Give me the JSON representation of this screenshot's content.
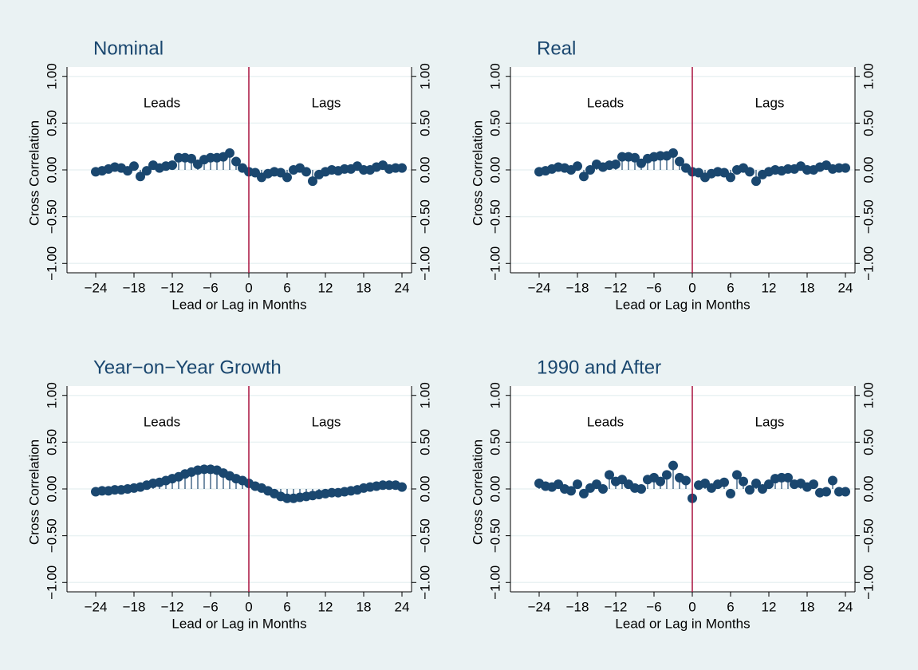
{
  "chart_data": [
    {
      "type": "stem",
      "title": "Nominal",
      "xlabel": "Lead or Lag in Months",
      "ylabel": "Cross Correlation",
      "annotations": [
        "Leads",
        "Lags"
      ],
      "x": [
        -24,
        -23,
        -22,
        -21,
        -20,
        -19,
        -18,
        -17,
        -16,
        -15,
        -14,
        -13,
        -12,
        -11,
        -10,
        -9,
        -8,
        -7,
        -6,
        -5,
        -4,
        -3,
        -2,
        -1,
        0,
        1,
        2,
        3,
        4,
        5,
        6,
        7,
        8,
        9,
        10,
        11,
        12,
        13,
        14,
        15,
        16,
        17,
        18,
        19,
        20,
        21,
        22,
        23,
        24
      ],
      "values": [
        -0.02,
        -0.01,
        0.01,
        0.03,
        0.02,
        -0.01,
        0.04,
        -0.07,
        -0.01,
        0.05,
        0.02,
        0.04,
        0.05,
        0.13,
        0.13,
        0.12,
        0.06,
        0.11,
        0.13,
        0.13,
        0.14,
        0.18,
        0.09,
        0.02,
        -0.02,
        -0.03,
        -0.08,
        -0.04,
        -0.02,
        -0.03,
        -0.08,
        0.0,
        0.02,
        -0.02,
        -0.12,
        -0.05,
        -0.02,
        0.0,
        -0.01,
        0.01,
        0.01,
        0.04,
        0.0,
        0.0,
        0.03,
        0.05,
        0.01,
        0.02,
        0.02
      ],
      "color": "#1a476f",
      "xline": 0,
      "xline_color": "#a8103e",
      "grid": true,
      "xlim": [
        -28.5,
        25.5
      ],
      "ylim": [
        -1.1,
        1.1
      ],
      "xticks": [
        {
          "value": -24,
          "label": "−24"
        },
        {
          "value": -18,
          "label": "−18"
        },
        {
          "value": -12,
          "label": "−12"
        },
        {
          "value": -6,
          "label": "−6"
        },
        0,
        6,
        12,
        18,
        24
      ],
      "yticks": [
        {
          "value": -1,
          "label": "−1.00"
        },
        {
          "value": -0.5,
          "label": "−0.50"
        },
        {
          "value": 0,
          "label": "0.00"
        },
        {
          "value": 0.5,
          "label": "0.50"
        },
        {
          "value": 1,
          "label": "1.00"
        }
      ]
    },
    {
      "type": "stem",
      "title": "Real",
      "xlabel": "Lead or Lag in Months",
      "ylabel": "Cross Correlation",
      "annotations": [
        "Leads",
        "Lags"
      ],
      "x": [
        -24,
        -23,
        -22,
        -21,
        -20,
        -19,
        -18,
        -17,
        -16,
        -15,
        -14,
        -13,
        -12,
        -11,
        -10,
        -9,
        -8,
        -7,
        -6,
        -5,
        -4,
        -3,
        -2,
        -1,
        0,
        1,
        2,
        3,
        4,
        5,
        6,
        7,
        8,
        9,
        10,
        11,
        12,
        13,
        14,
        15,
        16,
        17,
        18,
        19,
        20,
        21,
        22,
        23,
        24
      ],
      "values": [
        -0.02,
        -0.01,
        0.01,
        0.03,
        0.02,
        0.0,
        0.04,
        -0.07,
        0.0,
        0.06,
        0.03,
        0.05,
        0.06,
        0.14,
        0.14,
        0.13,
        0.07,
        0.12,
        0.14,
        0.15,
        0.15,
        0.18,
        0.09,
        0.02,
        -0.02,
        -0.03,
        -0.08,
        -0.04,
        -0.02,
        -0.03,
        -0.08,
        0.0,
        0.02,
        -0.02,
        -0.12,
        -0.05,
        -0.02,
        0.0,
        -0.01,
        0.01,
        0.01,
        0.04,
        0.0,
        0.0,
        0.03,
        0.05,
        0.01,
        0.02,
        0.02
      ],
      "color": "#1a476f",
      "xline": 0,
      "xline_color": "#a8103e",
      "grid": true,
      "xlim": [
        -28.5,
        25.5
      ],
      "ylim": [
        -1.1,
        1.1
      ],
      "xticks": [
        {
          "value": -24,
          "label": "−24"
        },
        {
          "value": -18,
          "label": "−18"
        },
        {
          "value": -12,
          "label": "−12"
        },
        {
          "value": -6,
          "label": "−6"
        },
        0,
        6,
        12,
        18,
        24
      ],
      "yticks": [
        {
          "value": -1,
          "label": "−1.00"
        },
        {
          "value": -0.5,
          "label": "−0.50"
        },
        {
          "value": 0,
          "label": "0.00"
        },
        {
          "value": 0.5,
          "label": "0.50"
        },
        {
          "value": 1,
          "label": "1.00"
        }
      ]
    },
    {
      "type": "stem",
      "title": "Year−on−Year Growth",
      "xlabel": "Lead or Lag in Months",
      "ylabel": "Cross Correlation",
      "annotations": [
        "Leads",
        "Lags"
      ],
      "x": [
        -24,
        -23,
        -22,
        -21,
        -20,
        -19,
        -18,
        -17,
        -16,
        -15,
        -14,
        -13,
        -12,
        -11,
        -10,
        -9,
        -8,
        -7,
        -6,
        -5,
        -4,
        -3,
        -2,
        -1,
        0,
        1,
        2,
        3,
        4,
        5,
        6,
        7,
        8,
        9,
        10,
        11,
        12,
        13,
        14,
        15,
        16,
        17,
        18,
        19,
        20,
        21,
        22,
        23,
        24
      ],
      "values": [
        -0.03,
        -0.02,
        -0.02,
        -0.01,
        -0.01,
        0.0,
        0.01,
        0.02,
        0.04,
        0.06,
        0.07,
        0.09,
        0.11,
        0.13,
        0.16,
        0.18,
        0.2,
        0.21,
        0.21,
        0.2,
        0.17,
        0.14,
        0.11,
        0.09,
        0.06,
        0.03,
        0.01,
        -0.02,
        -0.05,
        -0.08,
        -0.1,
        -0.1,
        -0.09,
        -0.08,
        -0.07,
        -0.06,
        -0.05,
        -0.04,
        -0.04,
        -0.03,
        -0.02,
        -0.01,
        0.01,
        0.02,
        0.03,
        0.04,
        0.04,
        0.04,
        0.02
      ],
      "color": "#1a476f",
      "xline": 0,
      "xline_color": "#a8103e",
      "grid": true,
      "xlim": [
        -28.5,
        25.5
      ],
      "ylim": [
        -1.1,
        1.1
      ],
      "xticks": [
        {
          "value": -24,
          "label": "−24"
        },
        {
          "value": -18,
          "label": "−18"
        },
        {
          "value": -12,
          "label": "−12"
        },
        {
          "value": -6,
          "label": "−6"
        },
        0,
        6,
        12,
        18,
        24
      ],
      "yticks": [
        {
          "value": -1,
          "label": "−1.00"
        },
        {
          "value": -0.5,
          "label": "−0.50"
        },
        {
          "value": 0,
          "label": "0.00"
        },
        {
          "value": 0.5,
          "label": "0.50"
        },
        {
          "value": 1,
          "label": "1.00"
        }
      ]
    },
    {
      "type": "stem",
      "title": "1990 and After",
      "xlabel": "Lead or Lag in Months",
      "ylabel": "Cross Correlation",
      "annotations": [
        "Leads",
        "Lags"
      ],
      "x": [
        -24,
        -23,
        -22,
        -21,
        -20,
        -19,
        -18,
        -17,
        -16,
        -15,
        -14,
        -13,
        -12,
        -11,
        -10,
        -9,
        -8,
        -7,
        -6,
        -5,
        -4,
        -3,
        -2,
        -1,
        0,
        1,
        2,
        3,
        4,
        5,
        6,
        7,
        8,
        9,
        10,
        11,
        12,
        13,
        14,
        15,
        16,
        17,
        18,
        19,
        20,
        21,
        22,
        23,
        24
      ],
      "values": [
        0.06,
        0.03,
        0.02,
        0.05,
        0.0,
        -0.02,
        0.05,
        -0.05,
        0.01,
        0.05,
        0.0,
        0.15,
        0.08,
        0.1,
        0.05,
        0.01,
        0.0,
        0.1,
        0.12,
        0.08,
        0.15,
        0.25,
        0.12,
        0.09,
        -0.1,
        0.04,
        0.06,
        0.01,
        0.05,
        0.07,
        -0.05,
        0.15,
        0.08,
        -0.01,
        0.06,
        0.0,
        0.05,
        0.11,
        0.12,
        0.12,
        0.05,
        0.06,
        0.02,
        0.05,
        -0.04,
        -0.03,
        0.09,
        -0.03,
        -0.03
      ],
      "color": "#1a476f",
      "xline": 0,
      "xline_color": "#a8103e",
      "grid": true,
      "xlim": [
        -28.5,
        25.5
      ],
      "ylim": [
        -1.1,
        1.1
      ],
      "xticks": [
        {
          "value": -24,
          "label": "−24"
        },
        {
          "value": -18,
          "label": "−18"
        },
        {
          "value": -12,
          "label": "−12"
        },
        {
          "value": -6,
          "label": "−6"
        },
        0,
        6,
        12,
        18,
        24
      ],
      "yticks": [
        {
          "value": -1,
          "label": "−1.00"
        },
        {
          "value": -0.5,
          "label": "−0.50"
        },
        {
          "value": 0,
          "label": "0.00"
        },
        {
          "value": 0.5,
          "label": "0.50"
        },
        {
          "value": 1,
          "label": "1.00"
        }
      ]
    }
  ]
}
